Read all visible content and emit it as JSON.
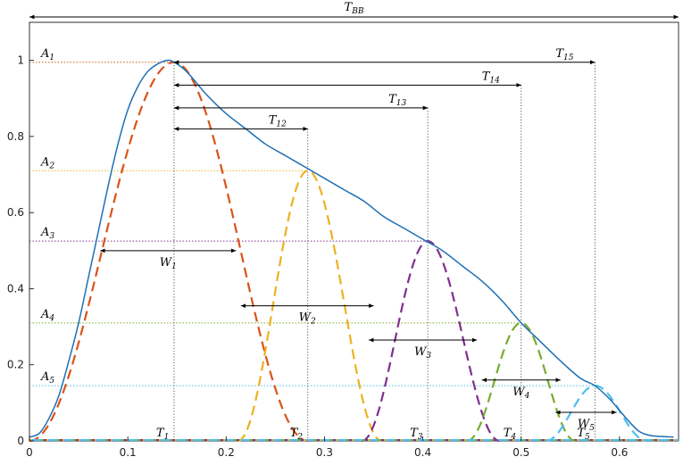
{
  "chart_data": {
    "type": "line",
    "title": "",
    "xlabel": "",
    "ylabel": "",
    "xlim": [
      0,
      0.66
    ],
    "ylim": [
      0,
      1.1
    ],
    "x_ticks": [
      0,
      0.1,
      0.2,
      0.3,
      0.4,
      0.5,
      0.6
    ],
    "x_tick_labels": [
      "0",
      "0.1",
      "0.2",
      "0.3",
      "0.4",
      "0.5",
      "0.6"
    ],
    "y_ticks": [
      0,
      0.2,
      0.4,
      0.6,
      0.8,
      1
    ],
    "y_tick_labels": [
      "0",
      "0.2",
      "0.4",
      "0.6",
      "0.8",
      "1"
    ],
    "grid": false,
    "legend": "none",
    "envelope": {
      "color": "#1f6fb5",
      "x": [
        0.0,
        0.01,
        0.02,
        0.03,
        0.04,
        0.05,
        0.06,
        0.07,
        0.08,
        0.09,
        0.1,
        0.11,
        0.12,
        0.13,
        0.14,
        0.147,
        0.16,
        0.18,
        0.2,
        0.22,
        0.24,
        0.26,
        0.28,
        0.3,
        0.32,
        0.34,
        0.36,
        0.38,
        0.4,
        0.42,
        0.44,
        0.46,
        0.48,
        0.5,
        0.52,
        0.54,
        0.56,
        0.575,
        0.59,
        0.6,
        0.61,
        0.62,
        0.63,
        0.64,
        0.655
      ],
      "y": [
        0.01,
        0.02,
        0.06,
        0.12,
        0.21,
        0.31,
        0.43,
        0.55,
        0.67,
        0.78,
        0.87,
        0.93,
        0.97,
        0.99,
        1.0,
        0.995,
        0.97,
        0.91,
        0.86,
        0.82,
        0.78,
        0.75,
        0.72,
        0.69,
        0.66,
        0.63,
        0.59,
        0.56,
        0.53,
        0.5,
        0.46,
        0.42,
        0.37,
        0.31,
        0.26,
        0.21,
        0.165,
        0.145,
        0.11,
        0.08,
        0.05,
        0.025,
        0.015,
        0.012,
        0.01
      ]
    },
    "pulses": [
      {
        "label": "1",
        "color": "#d95319",
        "peak_x": 0.147,
        "amplitude": 0.995,
        "start_x": 0.0,
        "end_x": 0.283
      },
      {
        "label": "2",
        "color": "#edb120",
        "peak_x": 0.283,
        "amplitude": 0.71,
        "start_x": 0.212,
        "end_x": 0.358
      },
      {
        "label": "3",
        "color": "#7e2f8e",
        "peak_x": 0.405,
        "amplitude": 0.525,
        "start_x": 0.338,
        "end_x": 0.478
      },
      {
        "label": "4",
        "color": "#77ac30",
        "peak_x": 0.5,
        "amplitude": 0.31,
        "start_x": 0.445,
        "end_x": 0.555
      },
      {
        "label": "5",
        "color": "#4dbeee",
        "peak_x": 0.575,
        "amplitude": 0.145,
        "start_x": 0.525,
        "end_x": 0.628
      }
    ],
    "annotations": {
      "tbb": {
        "text": "T",
        "sub": "BB"
      },
      "amplitude_labels": [
        {
          "text": "A",
          "sub": "1",
          "y": 0.995,
          "color": "#d95319"
        },
        {
          "text": "A",
          "sub": "2",
          "y": 0.71,
          "color": "#edb120"
        },
        {
          "text": "A",
          "sub": "3",
          "y": 0.525,
          "color": "#7e2f8e"
        },
        {
          "text": "A",
          "sub": "4",
          "y": 0.31,
          "color": "#77ac30"
        },
        {
          "text": "A",
          "sub": "5",
          "y": 0.145,
          "color": "#4dbeee"
        }
      ],
      "intervals": [
        {
          "text": "T",
          "sub": "12",
          "x_end": 0.283,
          "y": 0.82
        },
        {
          "text": "T",
          "sub": "13",
          "x_end": 0.405,
          "y": 0.875
        },
        {
          "text": "T",
          "sub": "14",
          "x_end": 0.5,
          "y": 0.935
        },
        {
          "text": "T",
          "sub": "15",
          "x_end": 0.575,
          "y": 0.995
        }
      ],
      "time_marks": [
        {
          "text": "T",
          "sub": "1",
          "x": 0.147
        },
        {
          "text": "T",
          "sub": "2",
          "x": 0.283
        },
        {
          "text": "T",
          "sub": "3",
          "x": 0.405
        },
        {
          "text": "T",
          "sub": "4",
          "x": 0.5
        },
        {
          "text": "T",
          "sub": "5",
          "x": 0.575
        }
      ],
      "widths": [
        {
          "text": "W",
          "sub": "1",
          "x0": 0.072,
          "x1": 0.21,
          "y": 0.5
        },
        {
          "text": "W",
          "sub": "2",
          "x0": 0.215,
          "x1": 0.35,
          "y": 0.355
        },
        {
          "text": "W",
          "sub": "3",
          "x0": 0.345,
          "x1": 0.455,
          "y": 0.265
        },
        {
          "text": "W",
          "sub": "4",
          "x0": 0.46,
          "x1": 0.54,
          "y": 0.16
        },
        {
          "text": "W",
          "sub": "5",
          "x0": 0.535,
          "x1": 0.597,
          "y": 0.075
        }
      ]
    }
  }
}
